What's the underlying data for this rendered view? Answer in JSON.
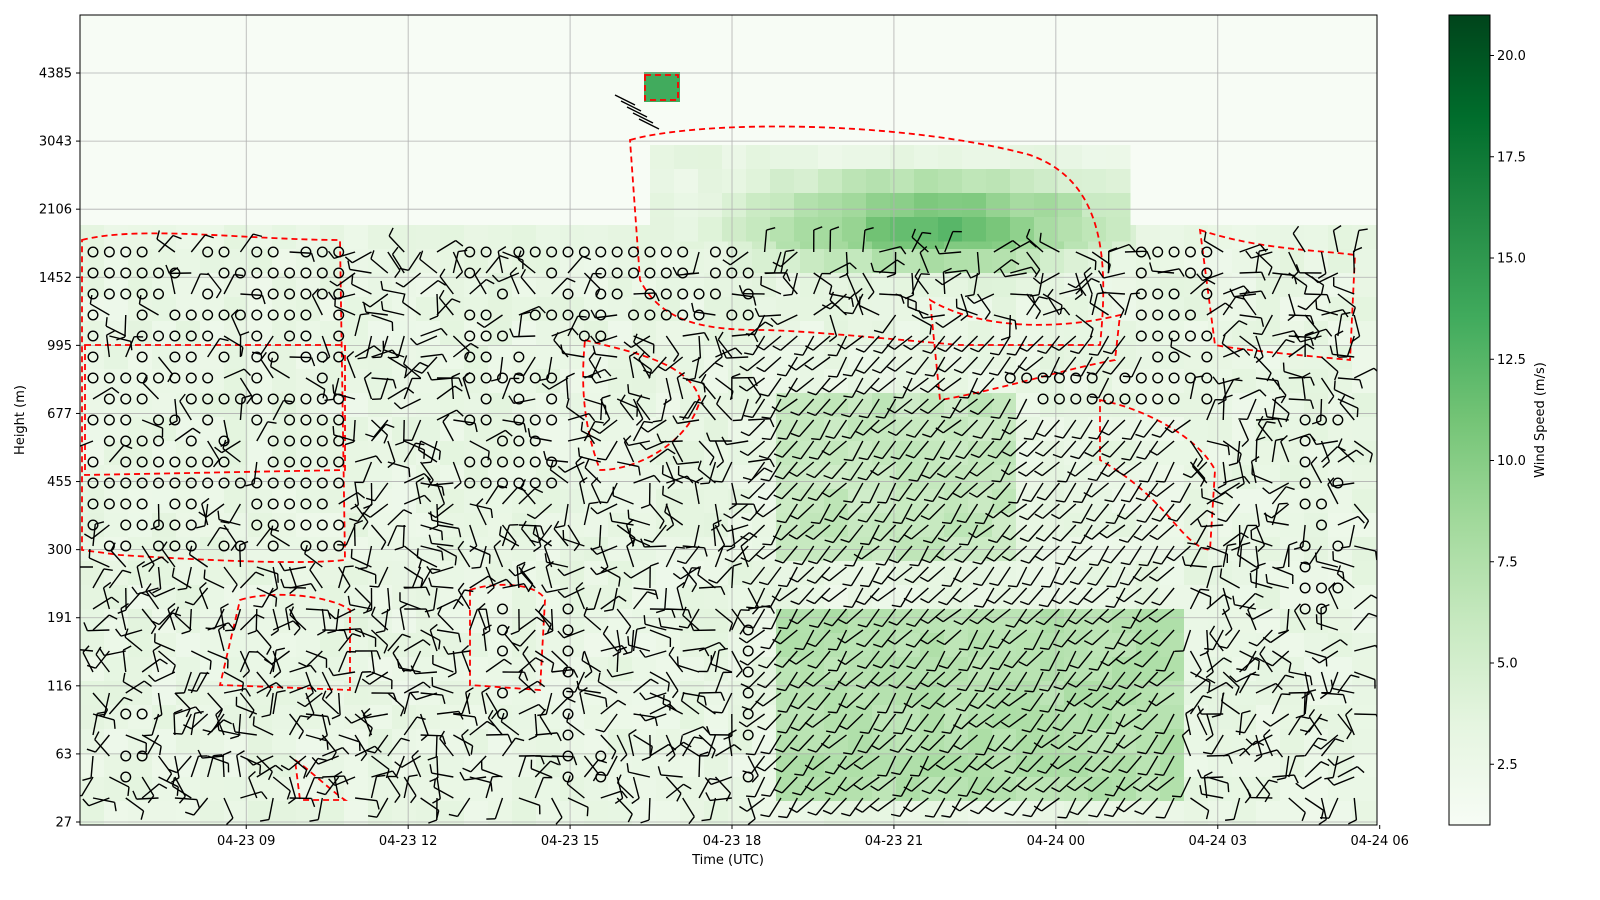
{
  "chart_data": {
    "type": "heatmap",
    "xlabel": "Time (UTC)",
    "ylabel": "Height (m)",
    "x_ticks": [
      "04-23 09",
      "04-23 12",
      "04-23 15",
      "04-23 18",
      "04-23 21",
      "04-24 00",
      "04-24 03",
      "04-24 06"
    ],
    "x_tick_hours": [
      9,
      12,
      15,
      18,
      21,
      24,
      27,
      30
    ],
    "xlim_hours": [
      5.92,
      29.95
    ],
    "y_ticks": [
      "27",
      "63",
      "116",
      "191",
      "300",
      "455",
      "677",
      "995",
      "1452",
      "2106",
      "3043",
      "4385"
    ],
    "colorbar": {
      "label": "Wind Speed (m/s)",
      "ticks": [
        "2.5",
        "5.0",
        "7.5",
        "10.0",
        "12.5",
        "15.0",
        "17.5",
        "20.0"
      ],
      "range": [
        1.0,
        21.0
      ],
      "colormap": "Greens"
    },
    "overlays": [
      "wind barbs",
      "calm-wind circles",
      "red dashed contour"
    ],
    "grid": true,
    "colors": {
      "contour": "#ff0000",
      "barb": "#000000",
      "grid": "#b0b0b0"
    }
  }
}
